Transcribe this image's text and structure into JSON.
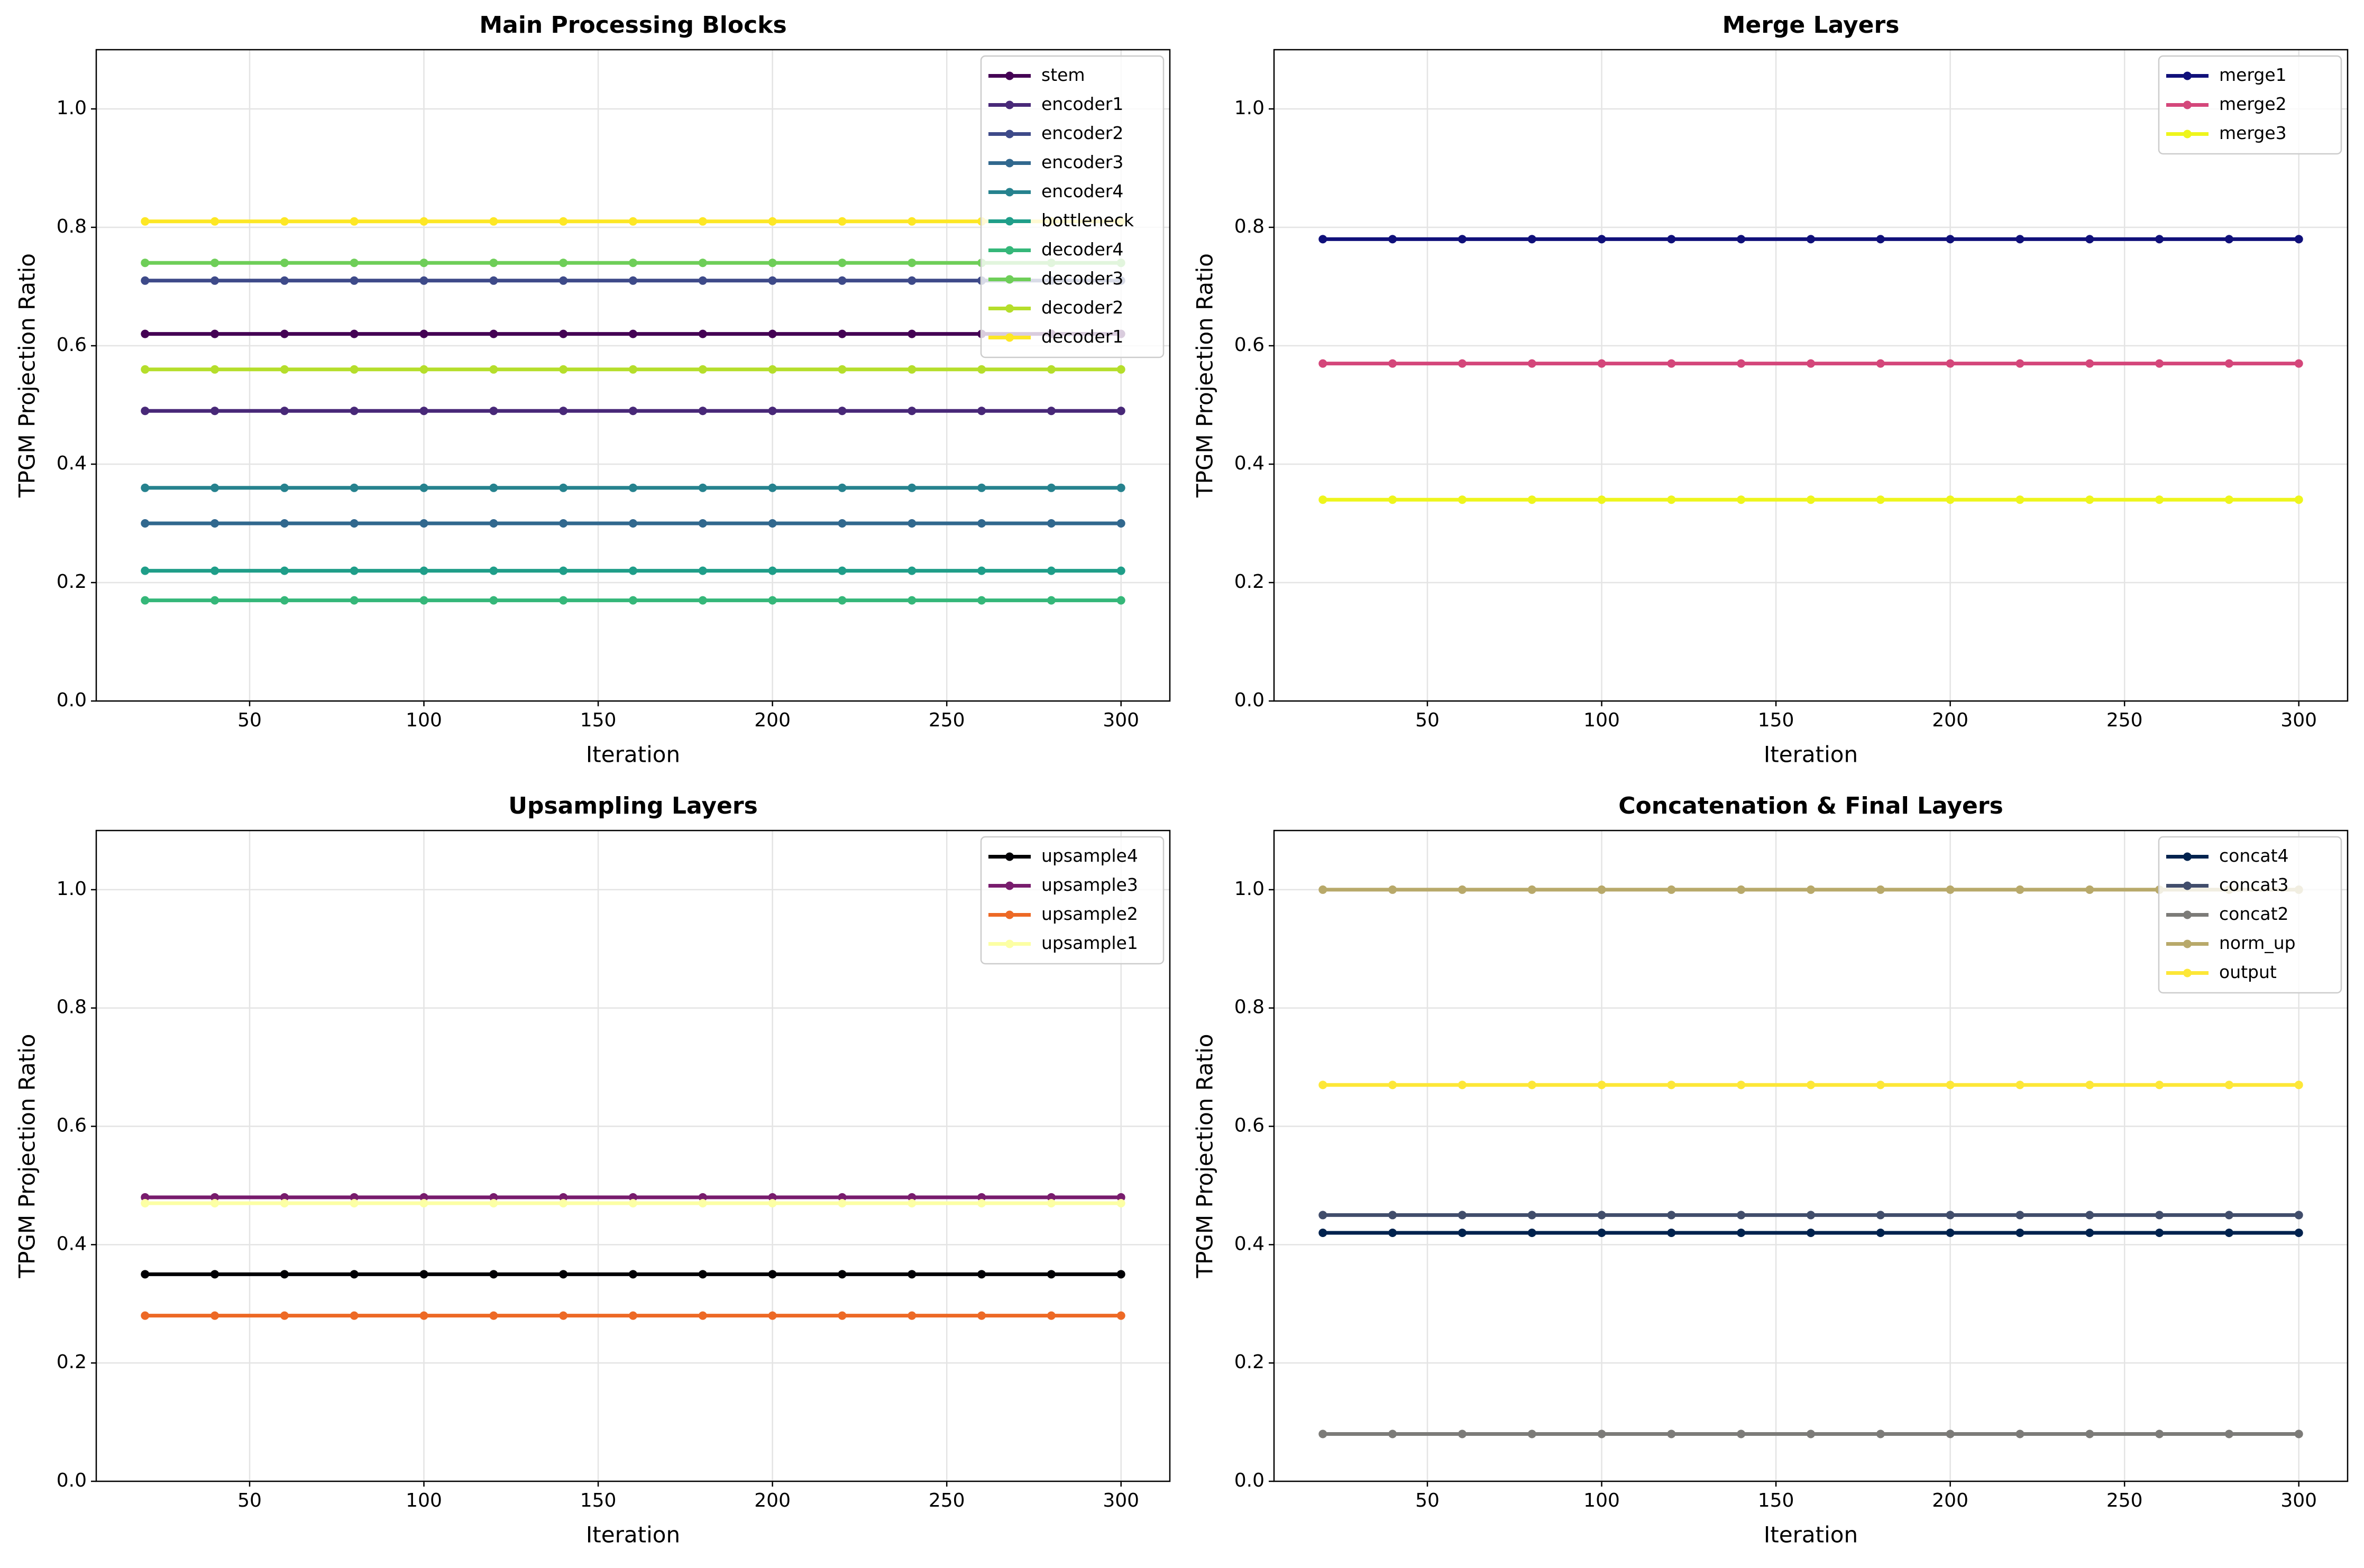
{
  "chart_data": [
    {
      "type": "line",
      "title": "Main Processing Blocks",
      "xlabel": "Iteration",
      "ylabel": "TPGM Projection Ratio",
      "x": [
        20,
        40,
        60,
        80,
        100,
        120,
        140,
        160,
        180,
        200,
        220,
        240,
        260,
        280,
        300
      ],
      "xlim": [
        6,
        314
      ],
      "xticks": [
        50,
        100,
        150,
        200,
        250,
        300
      ],
      "ylim": [
        0,
        1.1
      ],
      "yticks": [
        {
          "value": 0,
          "label": "0.0"
        },
        0.2,
        0.4,
        0.6,
        0.8,
        {
          "value": 1,
          "label": "1.0"
        }
      ],
      "grid": true,
      "legend": "upper right",
      "series": [
        {
          "name": "stem",
          "color": "#440154",
          "values": [
            0.62,
            0.62,
            0.62,
            0.62,
            0.62,
            0.62,
            0.62,
            0.62,
            0.62,
            0.62,
            0.62,
            0.62,
            0.62,
            0.62,
            0.62
          ]
        },
        {
          "name": "encoder1",
          "color": "#482878",
          "values": [
            0.49,
            0.49,
            0.49,
            0.49,
            0.49,
            0.49,
            0.49,
            0.49,
            0.49,
            0.49,
            0.49,
            0.49,
            0.49,
            0.49,
            0.49
          ]
        },
        {
          "name": "encoder2",
          "color": "#3e4a89",
          "values": [
            0.71,
            0.71,
            0.71,
            0.71,
            0.71,
            0.71,
            0.71,
            0.71,
            0.71,
            0.71,
            0.71,
            0.71,
            0.71,
            0.71,
            0.71
          ]
        },
        {
          "name": "encoder3",
          "color": "#31688e",
          "values": [
            0.3,
            0.3,
            0.3,
            0.3,
            0.3,
            0.3,
            0.3,
            0.3,
            0.3,
            0.3,
            0.3,
            0.3,
            0.3,
            0.3,
            0.3
          ]
        },
        {
          "name": "encoder4",
          "color": "#26828e",
          "values": [
            0.36,
            0.36,
            0.36,
            0.36,
            0.36,
            0.36,
            0.36,
            0.36,
            0.36,
            0.36,
            0.36,
            0.36,
            0.36,
            0.36,
            0.36
          ]
        },
        {
          "name": "bottleneck",
          "color": "#1f9e89",
          "values": [
            0.22,
            0.22,
            0.22,
            0.22,
            0.22,
            0.22,
            0.22,
            0.22,
            0.22,
            0.22,
            0.22,
            0.22,
            0.22,
            0.22,
            0.22
          ]
        },
        {
          "name": "decoder4",
          "color": "#35b779",
          "values": [
            0.17,
            0.17,
            0.17,
            0.17,
            0.17,
            0.17,
            0.17,
            0.17,
            0.17,
            0.17,
            0.17,
            0.17,
            0.17,
            0.17,
            0.17
          ]
        },
        {
          "name": "decoder3",
          "color": "#6ece58",
          "values": [
            0.74,
            0.74,
            0.74,
            0.74,
            0.74,
            0.74,
            0.74,
            0.74,
            0.74,
            0.74,
            0.74,
            0.74,
            0.74,
            0.74,
            0.74
          ]
        },
        {
          "name": "decoder2",
          "color": "#b5de2b",
          "values": [
            0.56,
            0.56,
            0.56,
            0.56,
            0.56,
            0.56,
            0.56,
            0.56,
            0.56,
            0.56,
            0.56,
            0.56,
            0.56,
            0.56,
            0.56
          ]
        },
        {
          "name": "decoder1",
          "color": "#fde725",
          "values": [
            0.81,
            0.81,
            0.81,
            0.81,
            0.81,
            0.81,
            0.81,
            0.81,
            0.81,
            0.81,
            0.81,
            0.81,
            0.81,
            0.81,
            0.81
          ]
        }
      ]
    },
    {
      "type": "line",
      "title": "Merge Layers",
      "xlabel": "Iteration",
      "ylabel": "TPGM Projection Ratio",
      "x": [
        20,
        40,
        60,
        80,
        100,
        120,
        140,
        160,
        180,
        200,
        220,
        240,
        260,
        280,
        300
      ],
      "xlim": [
        6,
        314
      ],
      "xticks": [
        50,
        100,
        150,
        200,
        250,
        300
      ],
      "ylim": [
        0,
        1.1
      ],
      "yticks": [
        {
          "value": 0,
          "label": "0.0"
        },
        0.2,
        0.4,
        0.6,
        0.8,
        {
          "value": 1,
          "label": "1.0"
        }
      ],
      "grid": true,
      "legend": "upper right",
      "series": [
        {
          "name": "merge1",
          "color": "#10107a",
          "values": [
            0.78,
            0.78,
            0.78,
            0.78,
            0.78,
            0.78,
            0.78,
            0.78,
            0.78,
            0.78,
            0.78,
            0.78,
            0.78,
            0.78,
            0.78
          ]
        },
        {
          "name": "merge2",
          "color": "#d4467a",
          "values": [
            0.57,
            0.57,
            0.57,
            0.57,
            0.57,
            0.57,
            0.57,
            0.57,
            0.57,
            0.57,
            0.57,
            0.57,
            0.57,
            0.57,
            0.57
          ]
        },
        {
          "name": "merge3",
          "color": "#eef51c",
          "values": [
            0.34,
            0.34,
            0.34,
            0.34,
            0.34,
            0.34,
            0.34,
            0.34,
            0.34,
            0.34,
            0.34,
            0.34,
            0.34,
            0.34,
            0.34
          ]
        }
      ]
    },
    {
      "type": "line",
      "title": "Upsampling Layers",
      "xlabel": "Iteration",
      "ylabel": "TPGM Projection Ratio",
      "x": [
        20,
        40,
        60,
        80,
        100,
        120,
        140,
        160,
        180,
        200,
        220,
        240,
        260,
        280,
        300
      ],
      "xlim": [
        6,
        314
      ],
      "xticks": [
        50,
        100,
        150,
        200,
        250,
        300
      ],
      "ylim": [
        0,
        1.1
      ],
      "yticks": [
        {
          "value": 0,
          "label": "0.0"
        },
        0.2,
        0.4,
        0.6,
        0.8,
        {
          "value": 1,
          "label": "1.0"
        }
      ],
      "grid": true,
      "legend": "upper right",
      "series": [
        {
          "name": "upsample4",
          "color": "#000004",
          "values": [
            0.35,
            0.35,
            0.35,
            0.35,
            0.35,
            0.35,
            0.35,
            0.35,
            0.35,
            0.35,
            0.35,
            0.35,
            0.35,
            0.35,
            0.35
          ]
        },
        {
          "name": "upsample3",
          "color": "#781c6d",
          "values": [
            0.48,
            0.48,
            0.48,
            0.48,
            0.48,
            0.48,
            0.48,
            0.48,
            0.48,
            0.48,
            0.48,
            0.48,
            0.48,
            0.48,
            0.48
          ]
        },
        {
          "name": "upsample2",
          "color": "#ed6925",
          "values": [
            0.28,
            0.28,
            0.28,
            0.28,
            0.28,
            0.28,
            0.28,
            0.28,
            0.28,
            0.28,
            0.28,
            0.28,
            0.28,
            0.28,
            0.28
          ]
        },
        {
          "name": "upsample1",
          "color": "#fcffa4",
          "values": [
            0.47,
            0.47,
            0.47,
            0.47,
            0.47,
            0.47,
            0.47,
            0.47,
            0.47,
            0.47,
            0.47,
            0.47,
            0.47,
            0.47,
            0.47
          ]
        }
      ]
    },
    {
      "type": "line",
      "title": "Concatenation & Final Layers",
      "xlabel": "Iteration",
      "ylabel": "TPGM Projection Ratio",
      "x": [
        20,
        40,
        60,
        80,
        100,
        120,
        140,
        160,
        180,
        200,
        220,
        240,
        260,
        280,
        300
      ],
      "xlim": [
        6,
        314
      ],
      "xticks": [
        50,
        100,
        150,
        200,
        250,
        300
      ],
      "ylim": [
        0,
        1.1
      ],
      "yticks": [
        {
          "value": 0,
          "label": "0.0"
        },
        0.2,
        0.4,
        0.6,
        0.8,
        {
          "value": 1,
          "label": "1.0"
        }
      ],
      "grid": true,
      "legend": "upper right",
      "series": [
        {
          "name": "concat4",
          "color": "#00224e",
          "values": [
            0.42,
            0.42,
            0.42,
            0.42,
            0.42,
            0.42,
            0.42,
            0.42,
            0.42,
            0.42,
            0.42,
            0.42,
            0.42,
            0.42,
            0.42
          ]
        },
        {
          "name": "concat3",
          "color": "#414d6b",
          "values": [
            0.45,
            0.45,
            0.45,
            0.45,
            0.45,
            0.45,
            0.45,
            0.45,
            0.45,
            0.45,
            0.45,
            0.45,
            0.45,
            0.45,
            0.45
          ]
        },
        {
          "name": "concat2",
          "color": "#7c7b78",
          "values": [
            0.08,
            0.08,
            0.08,
            0.08,
            0.08,
            0.08,
            0.08,
            0.08,
            0.08,
            0.08,
            0.08,
            0.08,
            0.08,
            0.08,
            0.08
          ]
        },
        {
          "name": "norm_up",
          "color": "#b8a96a",
          "values": [
            1.0,
            1.0,
            1.0,
            1.0,
            1.0,
            1.0,
            1.0,
            1.0,
            1.0,
            1.0,
            1.0,
            1.0,
            1.0,
            1.0,
            1.0
          ]
        },
        {
          "name": "output",
          "color": "#fde737",
          "values": [
            0.67,
            0.67,
            0.67,
            0.67,
            0.67,
            0.67,
            0.67,
            0.67,
            0.67,
            0.67,
            0.67,
            0.67,
            0.67,
            0.67,
            0.67
          ]
        }
      ]
    }
  ]
}
